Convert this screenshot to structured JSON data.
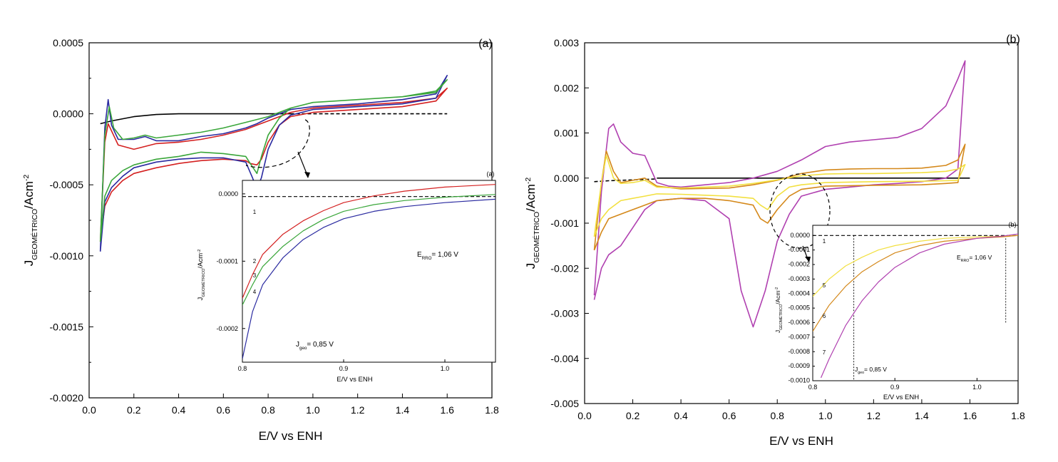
{
  "chart_data": [
    {
      "type": "line",
      "panel_label": "(a)",
      "xlabel": "E/V vs ENH",
      "ylabel_main": "J",
      "ylabel_sub": "GEOMÉTRICO",
      "ylabel_unit": "/Acm",
      "ylabel_sup": "-2",
      "xlim": [
        0.0,
        1.8
      ],
      "ylim": [
        -0.002,
        0.0005
      ],
      "xticks": [
        "0.0",
        "0.2",
        "0.4",
        "0.6",
        "0.8",
        "1.0",
        "1.2",
        "1.4",
        "1.6",
        "1.8"
      ],
      "yticks": [
        "0.0005",
        "0.0000",
        "-0.0005",
        "-0.0010",
        "-0.0015",
        "-0.0020"
      ],
      "series": [
        {
          "color": "#000000",
          "style": "solid",
          "x": [
            0.05,
            0.1,
            0.2,
            0.3,
            0.4,
            0.5,
            0.6,
            0.7,
            0.8,
            0.9
          ],
          "y": [
            -7e-05,
            -5e-05,
            -2e-05,
            -5e-06,
            0.0,
            0.0,
            0.0,
            0.0,
            0.0,
            0.0
          ]
        },
        {
          "color": "#000000",
          "style": "dashed",
          "x": [
            0.9,
            1.0,
            1.2,
            1.4,
            1.6
          ],
          "y": [
            0.0,
            0.0,
            0.0,
            0.0,
            0.0
          ]
        },
        {
          "color": "#d42020",
          "style": "solid",
          "x": [
            0.05,
            0.07,
            0.085,
            0.1,
            0.13,
            0.2,
            0.3,
            0.4,
            0.5,
            0.6,
            0.7,
            0.75,
            0.8,
            0.9,
            1.0,
            1.2,
            1.4,
            1.55,
            1.6,
            1.55,
            1.4,
            1.2,
            1.0,
            0.9,
            0.85,
            0.8,
            0.77,
            0.75,
            0.72,
            0.7,
            0.6,
            0.5,
            0.4,
            0.3,
            0.2,
            0.15,
            0.1,
            0.07,
            0.05
          ],
          "y": [
            -0.0009,
            -0.0002,
            -7e-05,
            -0.00012,
            -0.00022,
            -0.00025,
            -0.00021,
            -0.0002,
            -0.00018,
            -0.00015,
            -0.00011,
            -8e-05,
            -5e-05,
            1e-05,
            4e-05,
            6e-05,
            8e-05,
            0.00011,
            0.00018,
            9e-05,
            5e-05,
            3e-05,
            1e-05,
            -2e-05,
            -8e-05,
            -0.0002,
            -0.00032,
            -0.00036,
            -0.00035,
            -0.00033,
            -0.00032,
            -0.00033,
            -0.00035,
            -0.00038,
            -0.00042,
            -0.00047,
            -0.00055,
            -0.00065,
            -0.0009
          ]
        },
        {
          "color": "#2a2aa0",
          "style": "solid",
          "x": [
            0.05,
            0.07,
            0.085,
            0.1,
            0.13,
            0.2,
            0.25,
            0.3,
            0.4,
            0.5,
            0.6,
            0.7,
            0.75,
            0.8,
            0.9,
            1.0,
            1.2,
            1.4,
            1.55,
            1.6,
            1.55,
            1.4,
            1.2,
            1.0,
            0.9,
            0.85,
            0.8,
            0.77,
            0.75,
            0.73,
            0.7,
            0.6,
            0.5,
            0.4,
            0.3,
            0.2,
            0.15,
            0.1,
            0.07,
            0.05
          ],
          "y": [
            -0.00097,
            -0.0001,
            0.0001,
            -8e-05,
            -0.00018,
            -0.00018,
            -0.00016,
            -0.00019,
            -0.00019,
            -0.00016,
            -0.00014,
            -0.0001,
            -7e-05,
            -3e-05,
            3e-05,
            5e-05,
            7e-05,
            0.0001,
            0.00014,
            0.00027,
            0.00011,
            7e-05,
            5e-05,
            3e-05,
            -1e-05,
            -8e-05,
            -0.00025,
            -0.00045,
            -0.00053,
            -0.00045,
            -0.00034,
            -0.00031,
            -0.00031,
            -0.00032,
            -0.00034,
            -0.00038,
            -0.00044,
            -0.00052,
            -0.00062,
            -0.00097
          ]
        },
        {
          "color": "#3aa63a",
          "style": "solid",
          "x": [
            0.05,
            0.07,
            0.09,
            0.11,
            0.15,
            0.2,
            0.25,
            0.3,
            0.4,
            0.5,
            0.6,
            0.7,
            0.8,
            0.9,
            1.0,
            1.2,
            1.4,
            1.55,
            1.6,
            1.55,
            1.4,
            1.2,
            1.0,
            0.9,
            0.85,
            0.8,
            0.77,
            0.75,
            0.72,
            0.7,
            0.6,
            0.5,
            0.4,
            0.3,
            0.2,
            0.15,
            0.1,
            0.07,
            0.05
          ],
          "y": [
            -0.0009,
            -0.00015,
            5e-05,
            -0.0001,
            -0.00018,
            -0.00017,
            -0.00015,
            -0.00017,
            -0.00015,
            -0.00013,
            -0.0001,
            -6e-05,
            -2e-05,
            4e-05,
            8e-05,
            0.0001,
            0.00012,
            0.00016,
            0.00024,
            0.00015,
            0.00012,
            0.0001,
            8e-05,
            4e-05,
            -3e-05,
            -0.00015,
            -0.0003,
            -0.00042,
            -0.00035,
            -0.0003,
            -0.00028,
            -0.00027,
            -0.0003,
            -0.00032,
            -0.00036,
            -0.0004,
            -0.00047,
            -0.00058,
            -0.0009
          ]
        }
      ],
      "inset": {
        "label": "(a)",
        "xlabel": "E/V vs ENH",
        "ylabel_main": "J",
        "ylabel_sub": "GEOMÉTRICO",
        "ylabel_unit": "/Acm",
        "ylabel_sup": "-2",
        "xlim": [
          0.8,
          1.05
        ],
        "ylim": [
          -0.00025,
          2e-05
        ],
        "xticks": [
          "0.8",
          "0.9",
          "1.0"
        ],
        "yticks": [
          "0.0000",
          "-0.0001",
          "-0.0002"
        ],
        "note_erro_main": "E",
        "note_erro_sub": "RRO",
        "note_erro_val": "= 1,06 V",
        "note_jgeo_main": "J",
        "note_jgeo_sub": "geo",
        "note_jgeo_val": "= 0,85 V",
        "curve_labels": [
          "1",
          "2",
          "3",
          "4"
        ],
        "series": [
          {
            "color": "#000000",
            "style": "dashed",
            "x": [
              0.8,
              1.05
            ],
            "y": [
              -4e-06,
              -4e-06
            ]
          },
          {
            "color": "#d42020",
            "style": "solid",
            "x": [
              0.8,
              0.81,
              0.82,
              0.84,
              0.86,
              0.88,
              0.9,
              0.93,
              0.96,
              1.0,
              1.05
            ],
            "y": [
              -0.000155,
              -0.00012,
              -9e-05,
              -6e-05,
              -4e-05,
              -2.5e-05,
              -1.3e-05,
              -3e-06,
              4e-06,
              1e-05,
              1.4e-05
            ]
          },
          {
            "color": "#3aa63a",
            "style": "solid",
            "x": [
              0.8,
              0.81,
              0.82,
              0.84,
              0.86,
              0.88,
              0.9,
              0.93,
              0.96,
              1.0,
              1.05
            ],
            "y": [
              -0.000165,
              -0.000135,
              -0.000108,
              -7.8e-05,
              -5.5e-05,
              -3.8e-05,
              -2.6e-05,
              -1.6e-05,
              -1e-05,
              -5e-06,
              -1e-06
            ]
          },
          {
            "color": "#2a2aa0",
            "style": "solid",
            "x": [
              0.8,
              0.81,
              0.82,
              0.84,
              0.86,
              0.88,
              0.9,
              0.93,
              0.96,
              1.0,
              1.05
            ],
            "y": [
              -0.000245,
              -0.000175,
              -0.000135,
              -9.5e-05,
              -6.8e-05,
              -5e-05,
              -3.7e-05,
              -2.6e-05,
              -1.9e-05,
              -1.3e-05,
              -8e-06
            ]
          }
        ]
      }
    },
    {
      "type": "line",
      "panel_label": "(b)",
      "xlabel": "E/V vs ENH",
      "ylabel_main": "J",
      "ylabel_sub": "GEOMÉTRICO",
      "ylabel_unit": "/Acm",
      "ylabel_sup": "-2",
      "xlim": [
        0.0,
        1.8
      ],
      "ylim": [
        -0.005,
        0.003
      ],
      "xticks": [
        "0.0",
        "0.2",
        "0.4",
        "0.6",
        "0.8",
        "1.0",
        "1.2",
        "1.4",
        "1.6",
        "1.8"
      ],
      "yticks": [
        "0.003",
        "0.002",
        "0.001",
        "0.000",
        "-0.001",
        "-0.002",
        "-0.003",
        "-0.004",
        "-0.005"
      ],
      "series": [
        {
          "color": "#000000",
          "style": "dashed",
          "x": [
            0.04,
            0.1,
            0.2,
            0.3
          ],
          "y": [
            -8e-05,
            -6e-05,
            -4e-05,
            -2e-05
          ]
        },
        {
          "color": "#000000",
          "style": "solid",
          "x": [
            0.3,
            0.6,
            1.0,
            1.4,
            1.6
          ],
          "y": [
            0.0,
            0.0,
            0.0,
            0.0,
            0.0
          ]
        },
        {
          "color": "#b040b0",
          "style": "solid",
          "x": [
            0.04,
            0.07,
            0.1,
            0.12,
            0.15,
            0.2,
            0.25,
            0.3,
            0.35,
            0.4,
            0.5,
            0.6,
            0.7,
            0.8,
            0.9,
            1.0,
            1.1,
            1.2,
            1.3,
            1.4,
            1.5,
            1.55,
            1.58,
            1.55,
            1.5,
            1.4,
            1.3,
            1.2,
            1.1,
            1.0,
            0.9,
            0.85,
            0.8,
            0.75,
            0.7,
            0.65,
            0.6,
            0.5,
            0.4,
            0.3,
            0.25,
            0.2,
            0.15,
            0.1,
            0.07,
            0.04
          ],
          "y": [
            -0.0026,
            -0.0003,
            0.0011,
            0.0012,
            0.0008,
            0.00055,
            0.0005,
            -0.0001,
            -0.00018,
            -0.0002,
            -0.00015,
            -0.0001,
            0.0,
            0.00015,
            0.0004,
            0.0007,
            0.0008,
            0.00085,
            0.0009,
            0.0011,
            0.0016,
            0.0022,
            0.0026,
            0.0002,
            0.0,
            -8e-05,
            -0.00012,
            -0.00015,
            -0.0002,
            -0.00025,
            -0.0004,
            -0.0008,
            -0.0014,
            -0.0025,
            -0.0033,
            -0.0025,
            -0.0009,
            -0.0005,
            -0.00045,
            -0.0005,
            -0.0007,
            -0.0011,
            -0.0015,
            -0.0017,
            -0.002,
            -0.0027
          ]
        },
        {
          "color": "#d4881a",
          "style": "solid",
          "x": [
            0.04,
            0.07,
            0.09,
            0.12,
            0.15,
            0.2,
            0.25,
            0.3,
            0.4,
            0.5,
            0.6,
            0.7,
            0.8,
            0.9,
            1.0,
            1.1,
            1.2,
            1.3,
            1.4,
            1.5,
            1.55,
            1.58,
            1.55,
            1.5,
            1.4,
            1.2,
            1.0,
            0.9,
            0.85,
            0.8,
            0.76,
            0.73,
            0.7,
            0.6,
            0.5,
            0.4,
            0.3,
            0.25,
            0.2,
            0.15,
            0.1,
            0.07,
            0.04
          ],
          "y": [
            -0.0016,
            -0.0001,
            0.0006,
            0.00015,
            -0.0001,
            -5e-05,
            0.0,
            -0.00018,
            -0.00024,
            -0.00023,
            -0.00022,
            -0.00015,
            -5e-05,
            0.0001,
            0.00018,
            0.0002,
            0.00021,
            0.00021,
            0.00022,
            0.00028,
            0.0004,
            0.00075,
            -0.0001,
            -0.00012,
            -0.00015,
            -0.00016,
            -0.00018,
            -0.00025,
            -0.0004,
            -0.0007,
            -0.001,
            -0.0009,
            -0.0006,
            -0.0005,
            -0.00045,
            -0.00045,
            -0.0005,
            -0.0006,
            -0.0007,
            -0.0008,
            -0.0009,
            -0.0012,
            -0.0016
          ]
        },
        {
          "color": "#f2e040",
          "style": "solid",
          "x": [
            0.04,
            0.07,
            0.09,
            0.12,
            0.15,
            0.2,
            0.25,
            0.3,
            0.4,
            0.5,
            0.6,
            0.7,
            0.8,
            0.9,
            1.0,
            1.1,
            1.2,
            1.4,
            1.5,
            1.55,
            1.58,
            1.55,
            1.5,
            1.4,
            1.2,
            1.0,
            0.9,
            0.85,
            0.8,
            0.76,
            0.73,
            0.7,
            0.6,
            0.5,
            0.4,
            0.3,
            0.25,
            0.2,
            0.15,
            0.1,
            0.07,
            0.04
          ],
          "y": [
            -0.0013,
            -0.0001,
            0.0005,
            0.0,
            -0.00012,
            -0.0001,
            -5e-05,
            -0.0002,
            -0.00022,
            -0.0002,
            -0.00018,
            -0.00012,
            -4e-05,
            5e-05,
            9e-05,
            0.0001,
            0.0001,
            0.00012,
            0.00015,
            0.0002,
            0.0003,
            -5e-05,
            -6e-05,
            -7e-05,
            -8e-05,
            -0.0001,
            -0.00015,
            -0.0002,
            -0.0004,
            -0.0007,
            -0.0006,
            -0.00045,
            -0.0004,
            -0.00038,
            -0.00036,
            -0.00035,
            -0.0004,
            -0.00045,
            -0.0005,
            -0.0007,
            -0.0009,
            -0.0013
          ]
        }
      ],
      "inset": {
        "label": "(b)",
        "xlabel": "E/V vs ENH",
        "ylabel_main": "J",
        "ylabel_sub": "GEOMÉTRICO",
        "ylabel_unit": "/Acm",
        "ylabel_sup": "-2",
        "xlim": [
          0.8,
          1.05
        ],
        "ylim": [
          -0.001,
          0.0
        ],
        "xticks": [
          "0.8",
          "0.9",
          "1.0"
        ],
        "yticks": [
          "0.0000",
          "-0.0001",
          "-0.0002",
          "-0.0003",
          "-0.0004",
          "-0.0005",
          "-0.0006",
          "-0.0007",
          "-0.0008",
          "-0.0009",
          "-0.0010"
        ],
        "note_erro_main": "E",
        "note_erro_sub": "RRO",
        "note_erro_val": "= 1,06 V",
        "note_jgeo_main": "J",
        "note_jgeo_sub": "geo",
        "note_jgeo_val": "= 0,85 V",
        "curve_labels": [
          "1",
          "5",
          "6",
          "7"
        ],
        "series": [
          {
            "color": "#000000",
            "style": "dashed",
            "x": [
              0.8,
              1.05
            ],
            "y": [
              0.0,
              0.0
            ]
          },
          {
            "color": "#f2e040",
            "style": "solid",
            "x": [
              0.8,
              0.82,
              0.84,
              0.86,
              0.88,
              0.9,
              0.93,
              0.96,
              1.0,
              1.03,
              1.05
            ],
            "y": [
              -0.00042,
              -0.0003,
              -0.00021,
              -0.00015,
              -0.0001,
              -7e-05,
              -4e-05,
              -2e-05,
              -1e-05,
              -5e-06,
              0.0
            ]
          },
          {
            "color": "#d4881a",
            "style": "solid",
            "x": [
              0.8,
              0.82,
              0.84,
              0.86,
              0.88,
              0.9,
              0.93,
              0.96,
              1.0,
              1.03,
              1.05
            ],
            "y": [
              -0.00066,
              -0.00048,
              -0.00035,
              -0.00025,
              -0.00018,
              -0.00012,
              -7e-05,
              -4e-05,
              -2e-05,
              -1e-05,
              0.0
            ]
          },
          {
            "color": "#b040b0",
            "style": "solid",
            "x": [
              0.81,
              0.82,
              0.84,
              0.86,
              0.88,
              0.9,
              0.93,
              0.96,
              1.0,
              1.03,
              1.05
            ],
            "y": [
              -0.00098,
              -0.00085,
              -0.00062,
              -0.00045,
              -0.00032,
              -0.00022,
              -0.00012,
              -6e-05,
              -2e-05,
              -5e-06,
              1e-05
            ]
          }
        ]
      }
    }
  ]
}
